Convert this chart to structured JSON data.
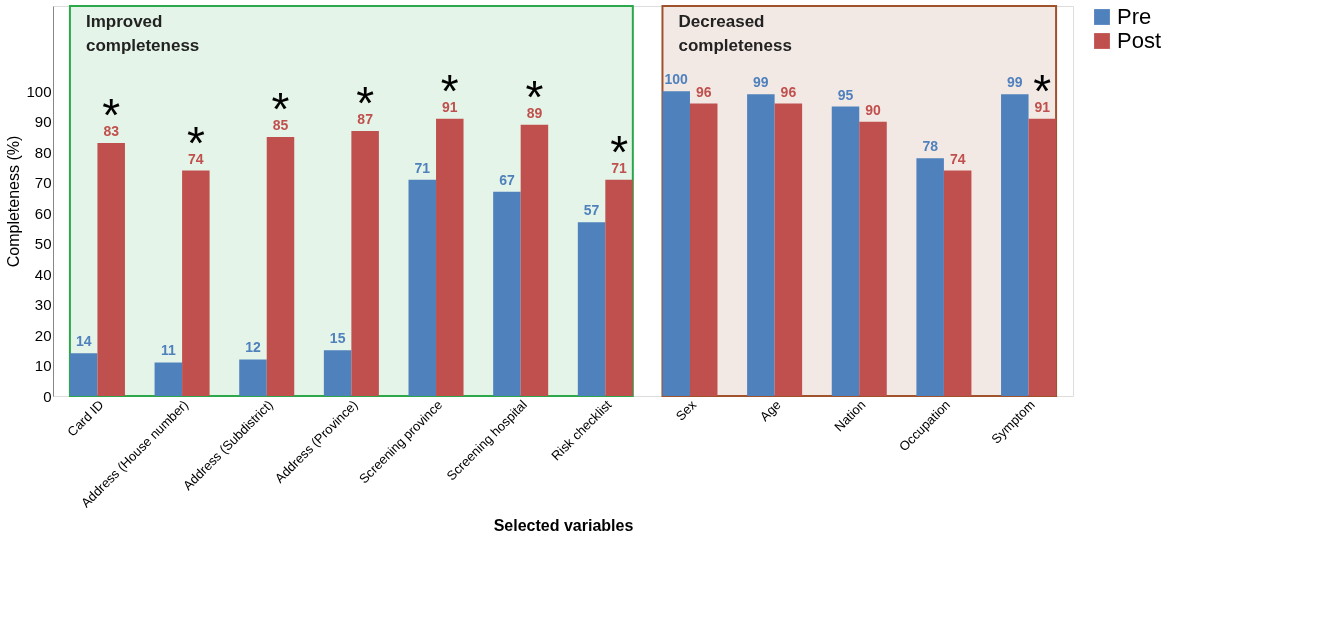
{
  "chart_data": {
    "type": "bar",
    "xlabel": "Selected variables",
    "ylabel": "Completeness (%)",
    "categories": [
      "Card ID",
      "Address (House number)",
      "Address (Subdistrict)",
      "Address (Province)",
      "Screening province",
      "Screening hospital",
      "Risk checklist",
      "Sex",
      "Age",
      "Nation",
      "Occupation",
      "Symptom"
    ],
    "series": [
      {
        "name": "Pre",
        "color": "#4f81bd",
        "values": [
          14,
          11,
          12,
          15,
          71,
          67,
          57,
          100,
          99,
          95,
          78,
          99
        ]
      },
      {
        "name": "Post",
        "color": "#c0504d",
        "values": [
          83,
          74,
          85,
          87,
          91,
          89,
          71,
          96,
          96,
          90,
          74,
          91
        ]
      }
    ],
    "data_labels": true,
    "ylim": [
      0,
      128
    ],
    "yticks": [
      0,
      10,
      20,
      30,
      40,
      50,
      60,
      70,
      80,
      90,
      100
    ],
    "grid": false,
    "legend": "right",
    "bands": [
      {
        "axis": "x",
        "from": "Card ID",
        "to": "Risk checklist",
        "label": "Improved completeness",
        "color": "#2ca84a"
      },
      {
        "axis": "x",
        "from": "Sex",
        "to": "Symptom",
        "label": "Decreased completeness",
        "color": "#a0522d"
      }
    ],
    "annotations": [
      {
        "text": "*",
        "x": "Card ID",
        "y": 83
      },
      {
        "text": "*",
        "x": "Address (House number)",
        "y": 74
      },
      {
        "text": "*",
        "x": "Address (Subdistrict)",
        "y": 85
      },
      {
        "text": "*",
        "x": "Address (Province)",
        "y": 87
      },
      {
        "text": "*",
        "x": "Screening province",
        "y": 91
      },
      {
        "text": "*",
        "x": "Screening hospital",
        "y": 89
      },
      {
        "text": "*",
        "x": "Risk checklist",
        "y": 71
      },
      {
        "text": "*",
        "x": "Symptom",
        "y": 91
      }
    ]
  }
}
